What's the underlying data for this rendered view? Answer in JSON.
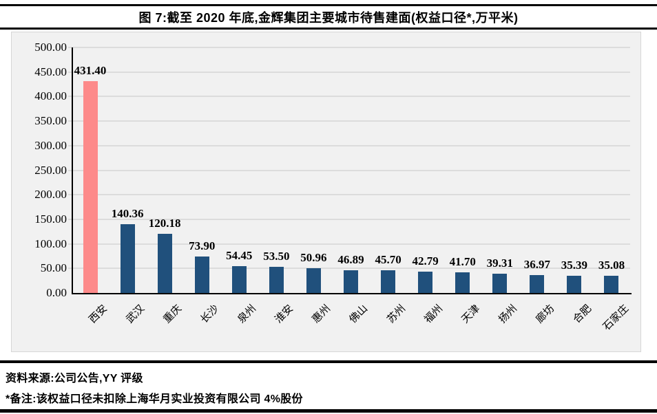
{
  "title": "图 7:截至 2020 年底,金辉集团主要城市待售建面(权益口径*,万平米)",
  "footer": {
    "source": "资料来源:公司公告,YY 评级",
    "note": "*备注:该权益口径未扣除上海华月实业投资有限公司 4%股份"
  },
  "chart_data": {
    "type": "bar",
    "title": "图 7:截至 2020 年底,金辉集团主要城市待售建面(权益口径*,万平米)",
    "categories": [
      "西安",
      "武汉",
      "重庆",
      "长沙",
      "泉州",
      "淮安",
      "惠州",
      "佛山",
      "苏州",
      "福州",
      "天津",
      "扬州",
      "廊坊",
      "合肥",
      "石家庄"
    ],
    "values": [
      431.4,
      140.36,
      120.18,
      73.9,
      54.45,
      53.5,
      50.96,
      46.89,
      45.7,
      42.79,
      41.7,
      39.31,
      36.97,
      35.39,
      35.08
    ],
    "xlabel": "",
    "ylabel": "",
    "ylim": [
      0,
      500
    ],
    "ytick_step": 50,
    "ytick_decimals": 2,
    "grid": true,
    "legend_position": "none",
    "highlight_index": 0,
    "highlight_color": "#fd8a8a",
    "bar_color": "#20507c",
    "plot_background": "#f1f1f1",
    "gridline_color": "#dcdcdc",
    "axis_color": "#000000"
  }
}
